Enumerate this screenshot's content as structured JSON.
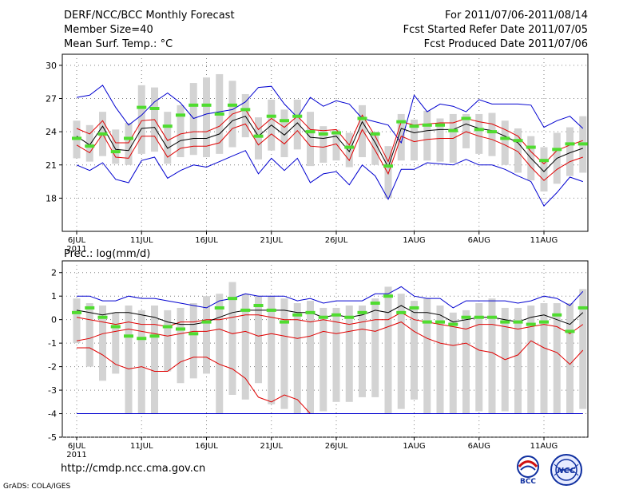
{
  "header": {
    "title": "DERF/NCC/BCC Monthly Forecast",
    "member_size": "Member Size=40",
    "variable_top": "Mean Surf. Temp.: °C",
    "period": "For 2011/07/06-2011/08/14",
    "fcst_started": "Fcst Started Refer Date 2011/07/05",
    "fcst_produced": "Fcst Produced Date 2011/07/06"
  },
  "footer": {
    "url": "http://cmdp.ncc.cma.gov.cn",
    "grads_credit": "GrADS: COLA/IGES",
    "logo_left_text": "BCC",
    "logo_right_text": "NCC"
  },
  "colors": {
    "box": "#d3d3d3",
    "obs": "#4fdc2f",
    "mean": "#000000",
    "inner": "#e00000",
    "outer": "#0000d0",
    "grid": "#808080"
  },
  "chart_data": [
    {
      "type": "line",
      "title": "Mean Surf. Temp.: °C",
      "x_ticks": [
        "6JUL",
        "11JUL",
        "16JUL",
        "21JUL",
        "26JUL",
        "1AUG",
        "6AUG",
        "11AUG"
      ],
      "x_tick_days": [
        1,
        6,
        11,
        16,
        21,
        27,
        32,
        37
      ],
      "x_year_label": "2011",
      "ylim": [
        15,
        31
      ],
      "yticks": [
        18,
        21,
        24,
        27,
        30
      ],
      "days": 40,
      "series": [
        {
          "name": "max",
          "color_key": "outer",
          "values": [
            27.1,
            27.3,
            28.2,
            26.2,
            24.6,
            25.5,
            26.7,
            27.5,
            26.6,
            25.2,
            25.6,
            25.8,
            26.0,
            26.7,
            28.0,
            28.1,
            26.5,
            25.3,
            27.1,
            26.3,
            26.8,
            26.5,
            25.2,
            24.9,
            24.6,
            23.0,
            27.3,
            25.8,
            26.5,
            26.3,
            25.8,
            26.9,
            26.5,
            26.5,
            26.5,
            26.4,
            24.4,
            25.0,
            25.4,
            24.3
          ]
        },
        {
          "name": "upper",
          "color_key": "inner",
          "values": [
            24.3,
            23.8,
            25.0,
            23.0,
            23.0,
            25.0,
            25.1,
            23.2,
            23.8,
            24.0,
            24.0,
            24.5,
            25.6,
            26.0,
            24.2,
            25.2,
            24.4,
            25.4,
            24.2,
            24.1,
            24.2,
            22.8,
            25.5,
            23.6,
            21.3,
            24.9,
            24.6,
            24.7,
            24.8,
            24.8,
            25.2,
            24.9,
            24.7,
            24.2,
            23.6,
            22.2,
            21.1,
            22.3,
            22.8,
            23.2
          ]
        },
        {
          "name": "mean",
          "color_key": "mean",
          "values": [
            23.6,
            22.8,
            24.5,
            22.4,
            22.3,
            24.3,
            24.4,
            22.5,
            23.2,
            23.4,
            23.4,
            23.8,
            25.0,
            25.4,
            23.6,
            24.6,
            23.7,
            24.8,
            23.5,
            23.4,
            23.6,
            22.2,
            24.9,
            23.0,
            20.8,
            24.3,
            23.9,
            24.1,
            24.2,
            24.2,
            24.7,
            24.3,
            24.1,
            23.6,
            23.0,
            21.6,
            20.4,
            21.6,
            22.1,
            22.5
          ]
        },
        {
          "name": "lower",
          "color_key": "inner",
          "values": [
            22.8,
            22.1,
            23.8,
            21.7,
            21.6,
            23.6,
            23.6,
            21.7,
            22.5,
            22.7,
            22.7,
            23.0,
            24.3,
            24.7,
            22.8,
            23.8,
            22.9,
            24.1,
            22.7,
            22.6,
            22.9,
            21.4,
            24.2,
            22.3,
            20.2,
            23.6,
            23.1,
            23.3,
            23.4,
            23.4,
            24.0,
            23.6,
            23.3,
            22.8,
            22.2,
            20.8,
            19.6,
            20.6,
            21.3,
            21.7
          ]
        },
        {
          "name": "min",
          "color_key": "outer",
          "values": [
            21.0,
            20.5,
            21.2,
            19.7,
            19.4,
            21.4,
            21.7,
            19.8,
            20.5,
            21.0,
            20.8,
            21.3,
            21.8,
            22.3,
            20.2,
            21.6,
            20.5,
            21.6,
            19.4,
            20.2,
            20.4,
            19.2,
            21.0,
            20.0,
            17.9,
            20.6,
            20.6,
            21.2,
            21.1,
            21.0,
            21.5,
            21.0,
            21.0,
            20.6,
            20.0,
            19.5,
            17.3,
            18.5,
            19.9,
            19.5
          ]
        }
      ],
      "boxes": {
        "low": [
          21.6,
          21.3,
          21.8,
          21.1,
          21.0,
          22.0,
          22.2,
          21.1,
          21.7,
          21.9,
          21.7,
          22.0,
          22.6,
          23.5,
          21.5,
          22.3,
          21.7,
          22.4,
          20.9,
          21.2,
          21.4,
          20.8,
          21.7,
          21.0,
          18.0,
          21.4,
          21.4,
          21.4,
          21.3,
          21.2,
          22.5,
          22.0,
          21.8,
          21.0,
          20.3,
          19.6,
          18.6,
          19.3,
          20.0,
          20.3
        ],
        "high": [
          25.0,
          24.6,
          25.8,
          24.2,
          24.8,
          28.2,
          28.0,
          25.8,
          26.4,
          28.4,
          28.9,
          29.2,
          28.6,
          27.4,
          25.3,
          26.9,
          26.0,
          26.9,
          25.8,
          24.5,
          24.2,
          23.9,
          26.4,
          24.0,
          22.7,
          25.6,
          25.1,
          25.9,
          25.2,
          25.6,
          25.6,
          25.6,
          25.7,
          25.0,
          24.3,
          23.6,
          22.6,
          23.9,
          24.4,
          25.4
        ],
        "obs": [
          23.4,
          22.7,
          23.8,
          22.2,
          23.4,
          26.2,
          26.1,
          24.5,
          25.5,
          26.4,
          26.4,
          25.6,
          26.4,
          26.0,
          23.6,
          25.4,
          25.0,
          25.4,
          24.0,
          23.8,
          23.9,
          22.6,
          25.2,
          23.8,
          20.9,
          24.9,
          24.5,
          24.6,
          24.6,
          24.1,
          25.2,
          24.2,
          24.0,
          23.4,
          23.2,
          22.6,
          21.4,
          22.4,
          22.9,
          22.9
        ]
      }
    },
    {
      "type": "line",
      "title": "Prec.: log(mm/d)",
      "x_ticks": [
        "6JUL",
        "11JUL",
        "16JUL",
        "21JUL",
        "26JUL",
        "1AUG",
        "6AUG",
        "11AUG"
      ],
      "x_tick_days": [
        1,
        6,
        11,
        16,
        21,
        27,
        32,
        37
      ],
      "x_year_label": "2011",
      "ylim": [
        -5,
        2.5
      ],
      "yticks": [
        -5,
        -4,
        -3,
        -2,
        -1,
        0,
        1,
        2
      ],
      "days": 40,
      "series": [
        {
          "name": "max",
          "color_key": "outer",
          "values": [
            1.0,
            1.0,
            0.8,
            0.8,
            1.0,
            0.9,
            0.9,
            0.8,
            0.7,
            0.6,
            0.5,
            0.8,
            0.9,
            1.1,
            1.0,
            1.0,
            1.0,
            0.8,
            0.9,
            0.7,
            0.8,
            0.8,
            0.8,
            1.1,
            1.1,
            1.4,
            1.0,
            0.9,
            0.9,
            0.5,
            0.8,
            0.8,
            0.8,
            0.8,
            0.7,
            0.8,
            1.0,
            0.9,
            0.6,
            1.2
          ]
        },
        {
          "name": "upper",
          "color_key": "inner",
          "values": [
            0.1,
            0.0,
            -0.1,
            -0.2,
            -0.1,
            -0.2,
            -0.2,
            -0.3,
            -0.1,
            -0.1,
            0.0,
            0.0,
            0.1,
            0.2,
            0.2,
            0.1,
            0.0,
            0.0,
            -0.1,
            0.0,
            -0.1,
            -0.2,
            -0.1,
            0.0,
            0.0,
            0.3,
            0.0,
            -0.1,
            -0.2,
            -0.3,
            -0.4,
            -0.2,
            -0.2,
            -0.3,
            -0.4,
            -0.3,
            -0.2,
            -0.3,
            -0.6,
            -0.2
          ]
        },
        {
          "name": "mean",
          "color_key": "mean",
          "values": [
            0.4,
            0.3,
            0.2,
            0.3,
            0.3,
            0.2,
            0.1,
            -0.1,
            -0.2,
            -0.2,
            -0.1,
            0.1,
            0.3,
            0.4,
            0.4,
            0.4,
            0.4,
            0.3,
            0.3,
            0.1,
            0.2,
            0.1,
            0.2,
            0.4,
            0.3,
            0.6,
            0.3,
            0.3,
            0.2,
            -0.1,
            0.0,
            0.1,
            0.1,
            0.0,
            -0.1,
            0.1,
            0.2,
            0.0,
            -0.2,
            0.3
          ]
        },
        {
          "name": "lower",
          "color_key": "inner",
          "values": [
            -1.2,
            -1.2,
            -1.5,
            -1.9,
            -2.1,
            -2.0,
            -2.2,
            -2.2,
            -1.8,
            -1.6,
            -1.6,
            -1.9,
            -2.1,
            -2.5,
            -3.3,
            -3.5,
            -3.2,
            -3.4,
            -4.0,
            -4.0,
            -4.0,
            -4.0,
            -4.0,
            -4.0,
            -4.0,
            -4.0,
            -4.0,
            -4.0,
            -4.0,
            -4.0,
            -4.0,
            -4.0,
            -4.0,
            -4.0,
            -4.0,
            -4.0,
            -4.0,
            -4.0,
            -4.0,
            -4.0
          ]
        },
        {
          "name": "min",
          "color_key": "outer",
          "values": [
            -4.0,
            -4.0,
            -4.0,
            -4.0,
            -4.0,
            -4.0,
            -4.0,
            -4.0,
            -4.0,
            -4.0,
            -4.0,
            -4.0,
            -4.0,
            -4.0,
            -4.0,
            -4.0,
            -4.0,
            -4.0,
            -4.0,
            -4.0,
            -4.0,
            -4.0,
            -4.0,
            -4.0,
            -4.0,
            -4.0,
            -4.0,
            -4.0,
            -4.0,
            -4.0,
            -4.0,
            -4.0,
            -4.0,
            -4.0,
            -4.0,
            -4.0,
            -4.0,
            -4.0,
            -4.0,
            -4.0
          ]
        },
        {
          "name": "lower_extra",
          "color_key": "inner",
          "values": [
            -0.9,
            -0.8,
            -0.6,
            -0.5,
            -0.4,
            -0.5,
            -0.6,
            -0.7,
            -0.6,
            -0.5,
            -0.5,
            -0.4,
            -0.6,
            -0.5,
            -0.7,
            -0.6,
            -0.7,
            -0.8,
            -0.7,
            -0.5,
            -0.6,
            -0.5,
            -0.4,
            -0.5,
            -0.3,
            -0.1,
            -0.5,
            -0.8,
            -1.0,
            -1.1,
            -1.0,
            -1.3,
            -1.4,
            -1.7,
            -1.5,
            -0.9,
            -1.2,
            -1.4,
            -1.9,
            -1.3
          ]
        }
      ],
      "boxes": {
        "low": [
          -1.0,
          -2.0,
          -2.6,
          -2.3,
          -4.0,
          -4.0,
          -4.0,
          -2.2,
          -2.7,
          -2.5,
          -2.3,
          -4.0,
          -3.2,
          -3.4,
          -2.7,
          -3.6,
          -3.8,
          -4.0,
          -4.0,
          -3.9,
          -3.5,
          -3.5,
          -3.3,
          -3.3,
          -4.0,
          -3.8,
          -3.4,
          -4.0,
          -4.0,
          -4.0,
          -4.0,
          -3.9,
          -4.0,
          -3.9,
          -4.0,
          -4.0,
          -4.0,
          -4.0,
          -4.0,
          -3.8
        ],
        "high": [
          0.9,
          0.7,
          0.6,
          0.3,
          0.6,
          0.4,
          0.6,
          0.4,
          0.5,
          0.7,
          1.0,
          1.1,
          1.6,
          1.1,
          1.0,
          1.0,
          0.9,
          0.7,
          0.8,
          0.5,
          0.5,
          0.6,
          0.6,
          0.9,
          1.4,
          1.1,
          0.8,
          0.9,
          0.6,
          0.3,
          0.4,
          0.7,
          0.9,
          0.5,
          0.5,
          0.6,
          0.7,
          0.7,
          0.7,
          1.3
        ],
        "obs": [
          0.3,
          0.5,
          0.1,
          -0.3,
          -0.7,
          -0.8,
          -0.7,
          -0.3,
          -0.4,
          -0.6,
          -0.1,
          0.5,
          0.9,
          0.4,
          0.6,
          0.4,
          -0.1,
          0.2,
          0.3,
          0.1,
          0.2,
          0.1,
          0.3,
          0.7,
          1.0,
          0.3,
          0.5,
          -0.1,
          -0.1,
          -0.2,
          0.1,
          0.1,
          0.1,
          -0.1,
          -0.1,
          -0.2,
          -0.1,
          0.2,
          -0.5,
          0.5
        ]
      }
    }
  ]
}
